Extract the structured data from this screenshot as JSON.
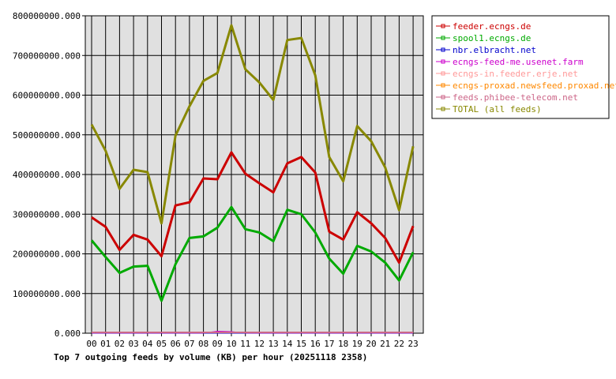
{
  "chart_data": {
    "type": "line",
    "caption": "Top 7 outgoing feeds by volume (KB) per hour (20251118 2358)",
    "categories": [
      "00",
      "01",
      "02",
      "03",
      "04",
      "05",
      "06",
      "07",
      "08",
      "09",
      "10",
      "11",
      "12",
      "13",
      "14",
      "15",
      "16",
      "17",
      "18",
      "19",
      "20",
      "21",
      "22",
      "23"
    ],
    "ylim": [
      0,
      800000000
    ],
    "yticks": [
      {
        "value": 0,
        "label": "0.000"
      },
      {
        "value": 100000000,
        "label": "100000000.000"
      },
      {
        "value": 200000000,
        "label": "200000000.000"
      },
      {
        "value": 300000000,
        "label": "300000000.000"
      },
      {
        "value": 400000000,
        "label": "400000000.000"
      },
      {
        "value": 500000000,
        "label": "500000000.000"
      },
      {
        "value": 600000000,
        "label": "600000000.000"
      },
      {
        "value": 700000000,
        "label": "700000000.000"
      },
      {
        "value": 800000000,
        "label": "800000000.000"
      }
    ],
    "grid": true,
    "legend_position": "right",
    "series": [
      {
        "name": "feeder.ecngs.de",
        "color": "#cc0000",
        "width": 3,
        "values": [
          292000000,
          268000000,
          210000000,
          248000000,
          236000000,
          194000000,
          322000000,
          330000000,
          390000000,
          388000000,
          456000000,
          402000000,
          378000000,
          355000000,
          428000000,
          444000000,
          405000000,
          256000000,
          236000000,
          305000000,
          277000000,
          240000000,
          178000000,
          270000000
        ]
      },
      {
        "name": "spool1.ecngs.de",
        "color": "#00aa00",
        "width": 3,
        "values": [
          234000000,
          192000000,
          152000000,
          168000000,
          170000000,
          82000000,
          174000000,
          240000000,
          244000000,
          266000000,
          318000000,
          262000000,
          254000000,
          232000000,
          311000000,
          300000000,
          254000000,
          188000000,
          150000000,
          220000000,
          206000000,
          178000000,
          133000000,
          204000000
        ]
      },
      {
        "name": "nbr.elbracht.net",
        "color": "#0000cc",
        "width": 1,
        "values": [
          0,
          0,
          0,
          0,
          0,
          0,
          0,
          0,
          0,
          0,
          0,
          0,
          0,
          0,
          0,
          0,
          0,
          0,
          0,
          0,
          0,
          0,
          0,
          0
        ]
      },
      {
        "name": "ecngs-feed-me.usenet.farm",
        "color": "#cc00cc",
        "width": 1,
        "values": [
          300000,
          300000,
          300000,
          300000,
          300000,
          300000,
          300000,
          300000,
          300000,
          5000000,
          4000000,
          300000,
          300000,
          300000,
          300000,
          300000,
          300000,
          300000,
          300000,
          300000,
          300000,
          300000,
          300000,
          300000
        ]
      },
      {
        "name": "ecngs-in.feeder.erje.net",
        "color": "#ff9999",
        "width": 1,
        "values": [
          1500000,
          1500000,
          1500000,
          1500000,
          1500000,
          1500000,
          1500000,
          1500000,
          1500000,
          1500000,
          1500000,
          1500000,
          1500000,
          1500000,
          1500000,
          1500000,
          1500000,
          1500000,
          1500000,
          1500000,
          1500000,
          1500000,
          1500000,
          1500000
        ]
      },
      {
        "name": "ecngs-proxad.newsfeed.proxad.net",
        "color": "#ff8800",
        "width": 1,
        "values": [
          1000000,
          1000000,
          1000000,
          1000000,
          1000000,
          1000000,
          1000000,
          1000000,
          1000000,
          1000000,
          1000000,
          1000000,
          1000000,
          1000000,
          1000000,
          1000000,
          1000000,
          1000000,
          1000000,
          1000000,
          1000000,
          1000000,
          1000000,
          1000000
        ]
      },
      {
        "name": "feeds.phibee-telecom.net",
        "color": "#cc6688",
        "width": 2,
        "values": [
          2000000,
          2000000,
          2000000,
          2000000,
          2000000,
          2000000,
          2000000,
          2000000,
          2000000,
          2000000,
          2000000,
          2000000,
          2000000,
          2000000,
          2000000,
          2000000,
          2000000,
          2000000,
          2000000,
          2000000,
          2000000,
          2000000,
          2000000,
          2000000
        ]
      },
      {
        "name": "TOTAL (all feeds)",
        "color": "#888800",
        "width": 3,
        "values": [
          526000000,
          460000000,
          364000000,
          412000000,
          406000000,
          277000000,
          498000000,
          572000000,
          636000000,
          656000000,
          776000000,
          665000000,
          632000000,
          588000000,
          739000000,
          744000000,
          650000000,
          444000000,
          383000000,
          522000000,
          484000000,
          418000000,
          310000000,
          471000000
        ]
      }
    ]
  }
}
